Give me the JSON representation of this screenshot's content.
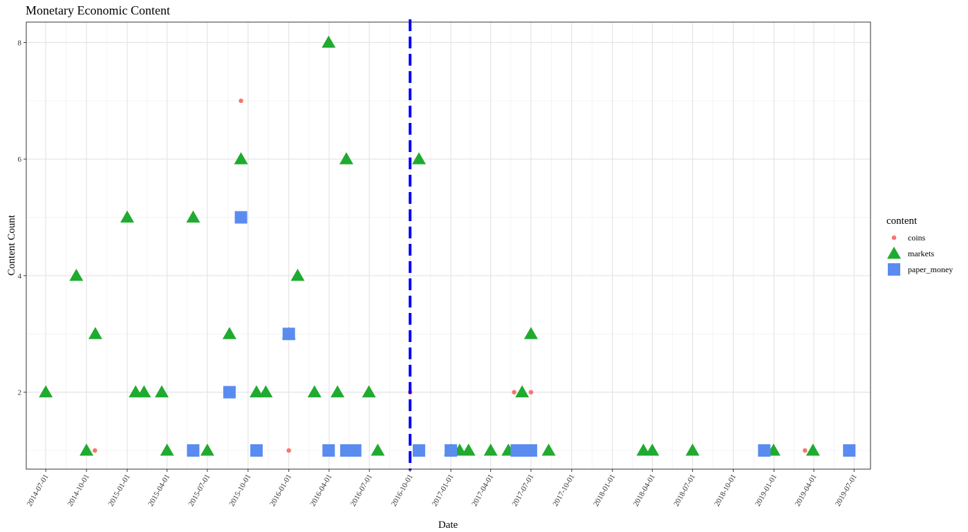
{
  "chart_data": {
    "type": "scatter",
    "title": "Monetary Economic Content",
    "xlabel": "Date",
    "ylabel": "Content Count",
    "xlim": [
      "2014-05-18",
      "2019-08-07"
    ],
    "ylim": [
      0.68,
      8.35
    ],
    "x_ticks": [
      "2014-07-01",
      "2014-10-01",
      "2015-01-01",
      "2015-04-01",
      "2015-07-01",
      "2015-10-01",
      "2016-01-01",
      "2016-04-01",
      "2016-07-01",
      "2016-10-01",
      "2017-01-01",
      "2017-04-01",
      "2017-07-01",
      "2017-10-01",
      "2018-01-01",
      "2018-04-01",
      "2018-07-01",
      "2018-10-01",
      "2019-01-01",
      "2019-04-01",
      "2019-07-01"
    ],
    "y_ticks": [
      "2",
      "4",
      "6",
      "8"
    ],
    "y_tick_values": [
      2,
      4,
      6,
      8
    ],
    "grid": true,
    "legend": {
      "title": "content",
      "position": "right"
    },
    "vline": {
      "x": "2016-10-01",
      "color": "#0000ff",
      "style": "dashed"
    },
    "series": [
      {
        "name": "coins",
        "shape": "circle",
        "color": "#f8766d",
        "points": [
          [
            "2014-10-20",
            1
          ],
          [
            "2015-09-15",
            7
          ],
          [
            "2016-01-01",
            1
          ],
          [
            "2016-10-01",
            2
          ],
          [
            "2017-05-24",
            2
          ],
          [
            "2017-07-01",
            2
          ],
          [
            "2019-03-12",
            1
          ]
        ]
      },
      {
        "name": "markets",
        "shape": "triangle",
        "color": "#1fab2f",
        "points": [
          [
            "2014-07-01",
            2
          ],
          [
            "2014-09-08",
            4
          ],
          [
            "2014-10-01",
            1
          ],
          [
            "2014-10-21",
            3
          ],
          [
            "2015-01-01",
            5
          ],
          [
            "2015-01-20",
            2
          ],
          [
            "2015-02-08",
            2
          ],
          [
            "2015-03-20",
            2
          ],
          [
            "2015-04-01",
            1
          ],
          [
            "2015-05-30",
            5
          ],
          [
            "2015-07-01",
            1
          ],
          [
            "2015-08-20",
            3
          ],
          [
            "2015-09-15",
            6
          ],
          [
            "2015-10-20",
            2
          ],
          [
            "2015-11-10",
            2
          ],
          [
            "2016-01-01",
            3
          ],
          [
            "2016-01-21",
            4
          ],
          [
            "2016-02-28",
            2
          ],
          [
            "2016-03-31",
            8
          ],
          [
            "2016-04-20",
            2
          ],
          [
            "2016-05-10",
            6
          ],
          [
            "2016-06-30",
            2
          ],
          [
            "2016-07-20",
            1
          ],
          [
            "2016-10-21",
            6
          ],
          [
            "2017-01-01",
            1
          ],
          [
            "2017-01-21",
            1
          ],
          [
            "2017-02-10",
            1
          ],
          [
            "2017-04-01",
            1
          ],
          [
            "2017-05-11",
            1
          ],
          [
            "2017-06-11",
            2
          ],
          [
            "2017-07-01",
            3
          ],
          [
            "2017-08-10",
            1
          ],
          [
            "2018-03-12",
            1
          ],
          [
            "2018-04-01",
            1
          ],
          [
            "2018-07-01",
            1
          ],
          [
            "2018-12-31",
            1
          ],
          [
            "2019-03-30",
            1
          ]
        ]
      },
      {
        "name": "paper_money",
        "shape": "square",
        "color": "#5a8cf0",
        "points": [
          [
            "2015-05-30",
            1
          ],
          [
            "2015-08-20",
            2
          ],
          [
            "2015-09-15",
            5
          ],
          [
            "2015-10-20",
            1
          ],
          [
            "2016-01-01",
            3
          ],
          [
            "2016-03-31",
            1
          ],
          [
            "2016-05-10",
            1
          ],
          [
            "2016-05-30",
            1
          ],
          [
            "2016-10-21",
            1
          ],
          [
            "2017-01-01",
            1
          ],
          [
            "2017-05-30",
            1
          ],
          [
            "2017-06-11",
            1
          ],
          [
            "2017-07-01",
            1
          ],
          [
            "2018-12-10",
            1
          ],
          [
            "2019-06-20",
            1
          ]
        ]
      }
    ]
  }
}
